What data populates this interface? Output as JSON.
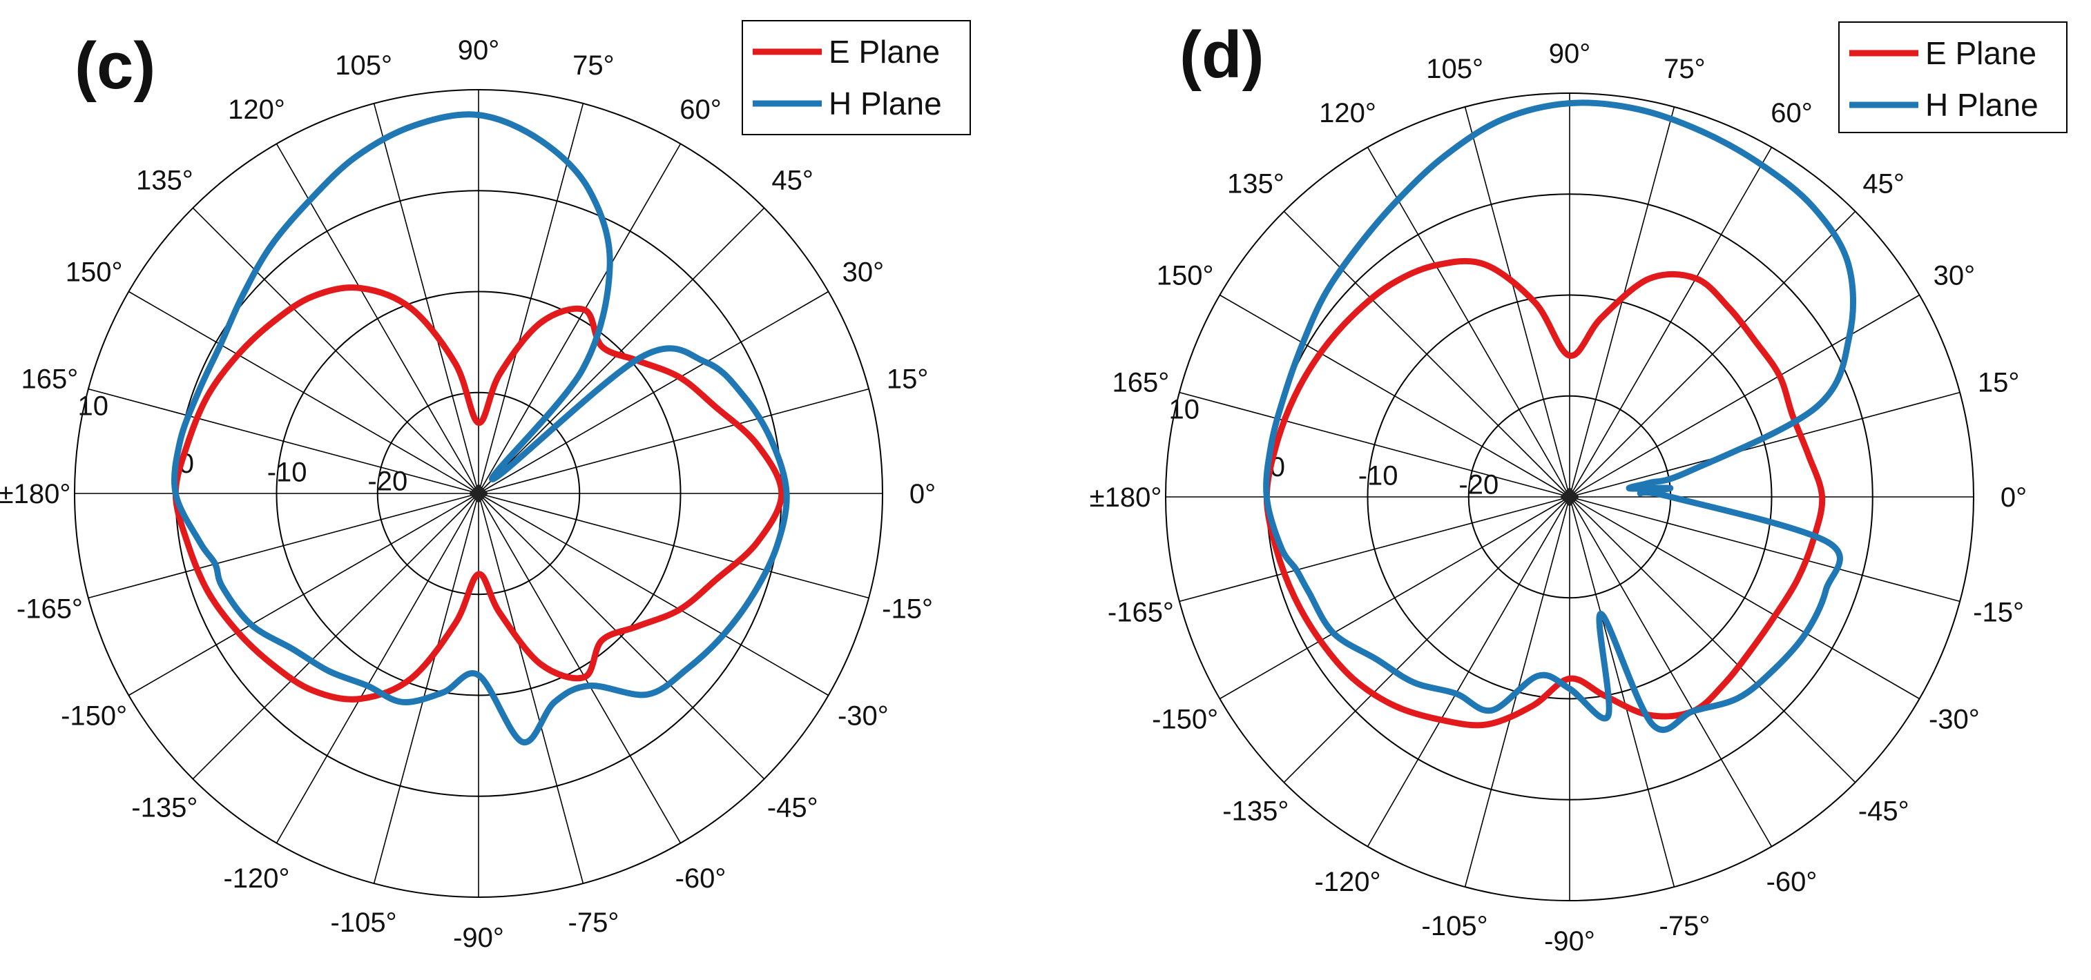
{
  "chart_data": [
    {
      "type": "polar-line",
      "panel_label": "(c)",
      "angle_unit": "deg",
      "radial_range": [
        -30,
        10
      ],
      "radial_ticks": [
        {
          "value": -20,
          "label": "-20"
        },
        {
          "value": -10,
          "label": "-10"
        },
        {
          "value": 0,
          "label": "0"
        },
        {
          "value": 10,
          "label": "10"
        }
      ],
      "angle_ticks": [
        {
          "angle": 0,
          "label": "0°"
        },
        {
          "angle": 15,
          "label": "15°"
        },
        {
          "angle": 30,
          "label": "30°"
        },
        {
          "angle": 45,
          "label": "45°"
        },
        {
          "angle": 60,
          "label": "60°"
        },
        {
          "angle": 75,
          "label": "75°"
        },
        {
          "angle": 90,
          "label": "90°"
        },
        {
          "angle": 105,
          "label": "105°"
        },
        {
          "angle": 120,
          "label": "120°"
        },
        {
          "angle": 135,
          "label": "135°"
        },
        {
          "angle": 150,
          "label": "150°"
        },
        {
          "angle": 165,
          "label": "165°"
        },
        {
          "angle": 180,
          "label": "±180°"
        },
        {
          "angle": -165,
          "label": "-165°"
        },
        {
          "angle": -150,
          "label": "-150°"
        },
        {
          "angle": -135,
          "label": "-135°"
        },
        {
          "angle": -120,
          "label": "-120°"
        },
        {
          "angle": -105,
          "label": "-105°"
        },
        {
          "angle": -90,
          "label": "-90°"
        },
        {
          "angle": -75,
          "label": "-75°"
        },
        {
          "angle": -60,
          "label": "-60°"
        },
        {
          "angle": -45,
          "label": "-45°"
        },
        {
          "angle": -30,
          "label": "-30°"
        },
        {
          "angle": -15,
          "label": "-15°"
        }
      ],
      "legend_position": "top-right",
      "series": [
        {
          "name": "E Plane",
          "color": "#e31a1c",
          "angles": [
            0,
            10,
            20,
            30,
            40,
            50,
            60,
            70,
            80,
            90,
            100,
            110,
            120,
            130,
            140,
            150,
            160,
            170,
            180,
            -170,
            -160,
            -150,
            -140,
            -130,
            -120,
            -110,
            -100,
            -90,
            -80,
            -70,
            -60,
            -50,
            -40,
            -30,
            -20,
            -10
          ],
          "values": [
            0,
            -2,
            -5,
            -7,
            -9.5,
            -11,
            -9,
            -12,
            -18,
            -23,
            -17,
            -10.5,
            -6.5,
            -4.5,
            -3.5,
            -2.5,
            -1.5,
            -0.8,
            0,
            -0.8,
            -1.5,
            -2.5,
            -3.5,
            -4.5,
            -6.5,
            -10.5,
            -17,
            -22,
            -18,
            -12,
            -9,
            -11,
            -9.5,
            -7,
            -5,
            -2
          ]
        },
        {
          "name": "H Plane",
          "color": "#1f77b4",
          "angles": [
            0,
            10,
            20,
            30,
            40,
            45,
            50,
            60,
            70,
            80,
            90,
            100,
            110,
            120,
            130,
            140,
            150,
            160,
            170,
            180,
            -170,
            -165,
            -160,
            -150,
            -140,
            -130,
            -120,
            -110,
            -100,
            -90,
            -80,
            -70,
            -60,
            -50,
            -40,
            -30,
            -20,
            -10
          ],
          "values": [
            0.5,
            -0.5,
            -2,
            -4,
            -9,
            -28,
            -14,
            -4,
            2,
            5.5,
            7.5,
            7,
            5.5,
            3.5,
            2,
            0.5,
            -0.5,
            -0.5,
            0,
            0,
            -2,
            -3,
            -3,
            -4,
            -6,
            -7,
            -8,
            -8,
            -10,
            -12,
            -5,
            -8,
            -8,
            -4,
            -3,
            -2,
            -1,
            0
          ]
        }
      ]
    },
    {
      "type": "polar-line",
      "panel_label": "(d)",
      "angle_unit": "deg",
      "radial_range": [
        -30,
        10
      ],
      "radial_ticks": [
        {
          "value": -20,
          "label": "-20"
        },
        {
          "value": -10,
          "label": "-10"
        },
        {
          "value": 0,
          "label": "0"
        },
        {
          "value": 10,
          "label": "10"
        }
      ],
      "angle_ticks": [
        {
          "angle": 0,
          "label": "0°"
        },
        {
          "angle": 15,
          "label": "15°"
        },
        {
          "angle": 30,
          "label": "30°"
        },
        {
          "angle": 45,
          "label": "45°"
        },
        {
          "angle": 60,
          "label": "60°"
        },
        {
          "angle": 75,
          "label": "75°"
        },
        {
          "angle": 90,
          "label": "90°"
        },
        {
          "angle": 105,
          "label": "105°"
        },
        {
          "angle": 120,
          "label": "120°"
        },
        {
          "angle": 135,
          "label": "135°"
        },
        {
          "angle": 150,
          "label": "150°"
        },
        {
          "angle": 165,
          "label": "165°"
        },
        {
          "angle": 180,
          "label": "±180°"
        },
        {
          "angle": -165,
          "label": "-165°"
        },
        {
          "angle": -150,
          "label": "-150°"
        },
        {
          "angle": -135,
          "label": "-135°"
        },
        {
          "angle": -120,
          "label": "-120°"
        },
        {
          "angle": -105,
          "label": "-105°"
        },
        {
          "angle": -90,
          "label": "-90°"
        },
        {
          "angle": -75,
          "label": "-75°"
        },
        {
          "angle": -60,
          "label": "-60°"
        },
        {
          "angle": -45,
          "label": "-45°"
        },
        {
          "angle": -30,
          "label": "-30°"
        },
        {
          "angle": -15,
          "label": "-15°"
        }
      ],
      "legend_position": "top-right",
      "series": [
        {
          "name": "E Plane",
          "color": "#e31a1c",
          "angles": [
            0,
            10,
            20,
            30,
            40,
            50,
            60,
            70,
            80,
            90,
            100,
            110,
            120,
            130,
            140,
            150,
            160,
            170,
            180,
            -170,
            -160,
            -150,
            -140,
            -130,
            -120,
            -110,
            -100,
            -90,
            -80,
            -70,
            -60,
            -50,
            -40,
            -30,
            -20,
            -10
          ],
          "values": [
            -5,
            -6,
            -6.5,
            -6,
            -6,
            -5.5,
            -5,
            -7,
            -12,
            -16,
            -10.5,
            -5.5,
            -3.5,
            -2.5,
            -2,
            -1.5,
            -1,
            -0.5,
            0,
            -0.5,
            -1,
            -1.5,
            -2,
            -3,
            -4.5,
            -6,
            -9,
            -12,
            -10,
            -7,
            -5.5,
            -6,
            -6.5,
            -6.5,
            -6,
            -5.5
          ]
        },
        {
          "name": "H Plane",
          "color": "#1f77b4",
          "angles": [
            0,
            3,
            5,
            8,
            10,
            12,
            20,
            30,
            40,
            50,
            60,
            70,
            80,
            90,
            100,
            110,
            120,
            130,
            140,
            150,
            160,
            170,
            180,
            -170,
            -165,
            -160,
            -150,
            -140,
            -130,
            -120,
            -110,
            -100,
            -90,
            -80,
            -75,
            -70,
            -60,
            -50,
            -40,
            -30,
            -20,
            -10
          ],
          "values": [
            -20,
            -23,
            -20,
            -24,
            -22,
            -18,
            -4,
            2,
            6,
            7.5,
            8,
            8.5,
            9,
            9,
            8,
            6,
            4,
            2.5,
            1.5,
            0.5,
            0,
            0,
            0,
            -1,
            -2,
            -2.5,
            -3,
            -5,
            -6,
            -7.5,
            -7.5,
            -12,
            -11,
            -8,
            -18,
            -6,
            -5.5,
            -4,
            -3.5,
            -3,
            -3,
            -4
          ]
        }
      ]
    }
  ]
}
